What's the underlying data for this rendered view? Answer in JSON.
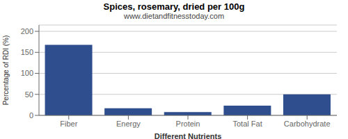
{
  "chart_data": {
    "type": "bar",
    "title": "Spices, rosemary, dried per 100g",
    "subtitle": "www.dietandfitnesstoday.com",
    "xlabel": "Different Nutrients",
    "ylabel": "Percentage of RDI (%)",
    "categories": [
      "Fiber",
      "Energy",
      "Protein",
      "Total Fat",
      "Carbohydrate"
    ],
    "values": [
      168,
      17,
      8,
      23,
      50
    ],
    "color": "#2e4e8e",
    "ylim": [
      0,
      215
    ],
    "yticks": [
      0,
      50,
      100,
      150,
      200
    ],
    "grid": true
  }
}
